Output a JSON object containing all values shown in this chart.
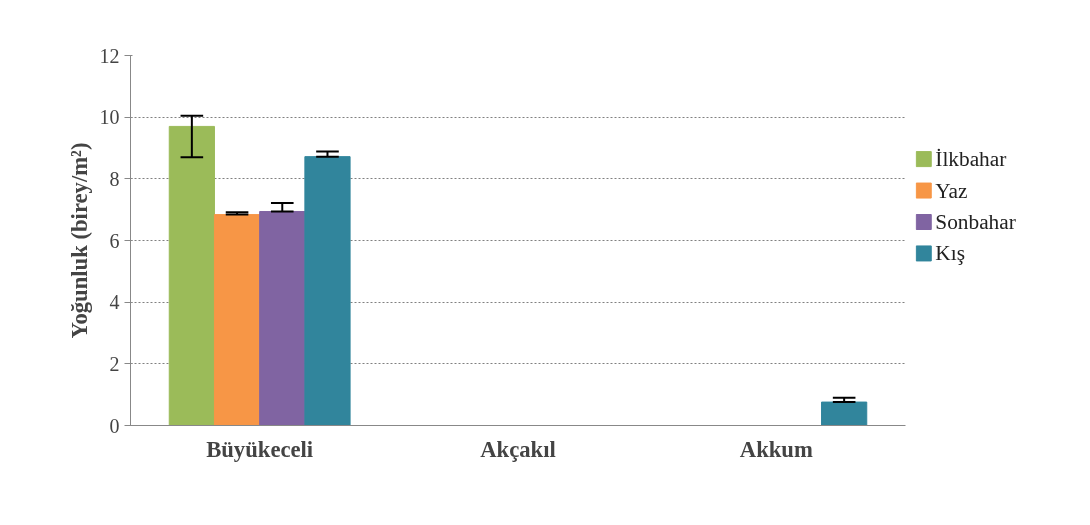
{
  "chart_data": {
    "type": "bar",
    "ylabel": "Yoğunluk (birey/m²)",
    "categories": [
      "Büyükeceli",
      "Akçakıl",
      "Akkum"
    ],
    "series": [
      {
        "name": "İlkbahar",
        "color": "#9bbb59",
        "values": [
          9.7,
          0,
          0
        ],
        "errors": [
          [
            8.7,
            10.05
          ],
          null,
          null
        ]
      },
      {
        "name": "Yaz",
        "color": "#f79646",
        "values": [
          6.84,
          0,
          0
        ],
        "errors": [
          [
            6.84,
            6.92
          ],
          null,
          null
        ]
      },
      {
        "name": "Sonbahar",
        "color": "#8064a2",
        "values": [
          6.94,
          0,
          0
        ],
        "errors": [
          [
            6.94,
            7.22
          ],
          null,
          null
        ]
      },
      {
        "name": "Kış",
        "color": "#31859c",
        "values": [
          8.72,
          0,
          0.76
        ],
        "errors": [
          [
            8.72,
            8.89
          ],
          null,
          [
            0.76,
            0.9
          ]
        ]
      }
    ],
    "ylim": [
      0,
      12
    ],
    "yticks": [
      0,
      2,
      4,
      6,
      8,
      10,
      12
    ],
    "grid": "y",
    "legend": "right"
  }
}
